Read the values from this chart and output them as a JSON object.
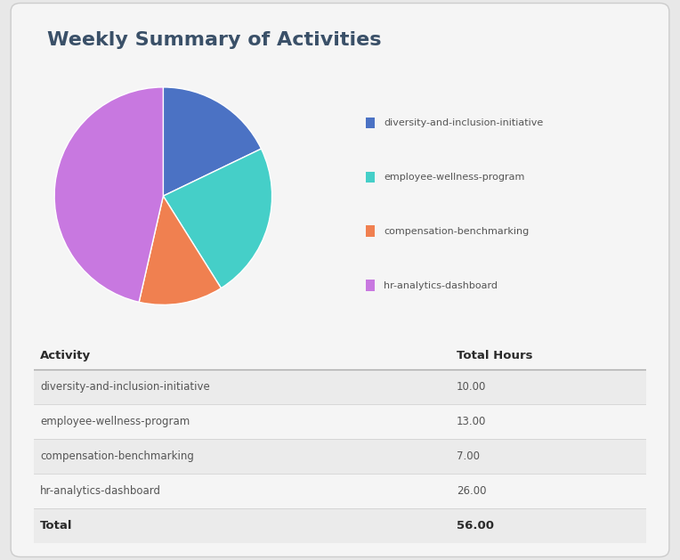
{
  "title": "Weekly Summary of Activities",
  "title_color": "#3a5068",
  "background_color": "#e8e8e8",
  "card_color": "#f5f5f5",
  "activities": [
    "diversity-and-inclusion-initiative",
    "employee-wellness-program",
    "compensation-benchmarking",
    "hr-analytics-dashboard"
  ],
  "hours": [
    10.0,
    13.0,
    7.0,
    26.0
  ],
  "total": 56.0,
  "colors": [
    "#4b72c4",
    "#45cfc8",
    "#f08050",
    "#c878e0"
  ],
  "pie_startangle": 90,
  "table_header_activity": "Activity",
  "table_header_hours": "Total Hours",
  "table_text_color": "#555555",
  "table_bold_color": "#2a2a2a",
  "header_line_color": "#aaaaaa",
  "row_line_color": "#cccccc",
  "row_bg_odd": "#ebebeb",
  "row_bg_even": "#f5f5f5"
}
